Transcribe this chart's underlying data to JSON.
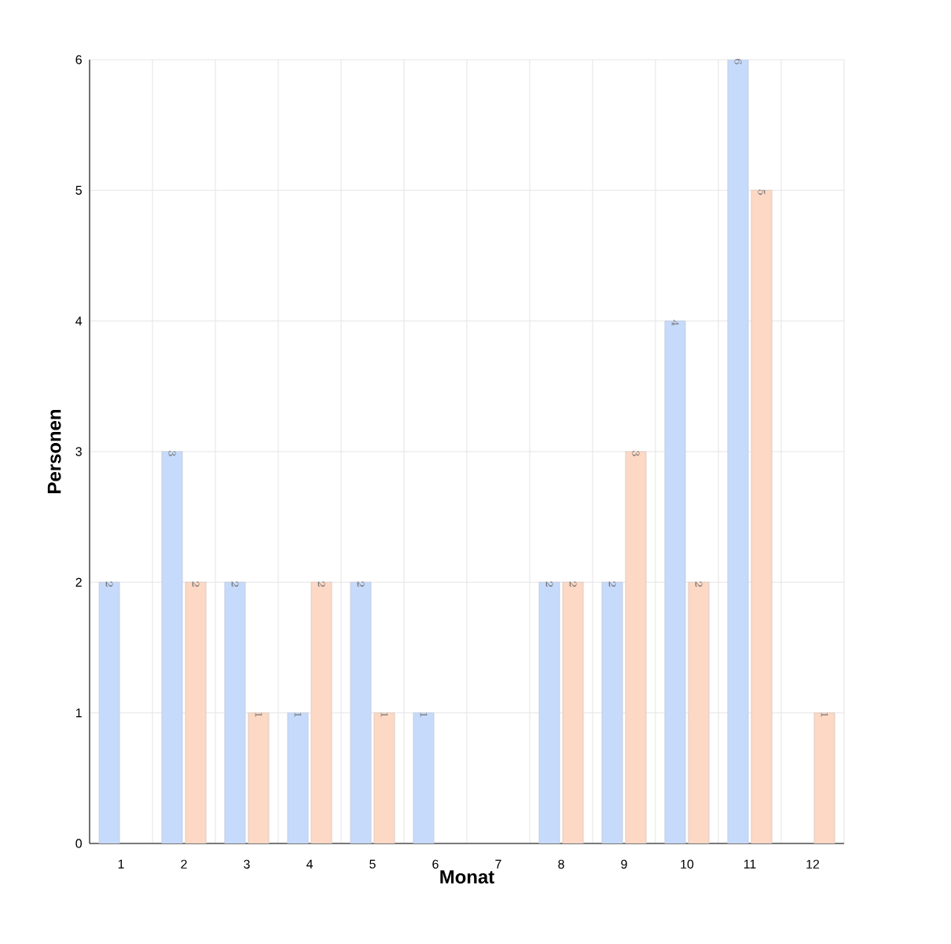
{
  "chart_data": {
    "type": "bar",
    "xlabel": "Monat",
    "ylabel": "Personen",
    "categories": [
      "1",
      "2",
      "3",
      "4",
      "5",
      "6",
      "7",
      "8",
      "9",
      "10",
      "11",
      "12"
    ],
    "series": [
      {
        "color": "#c6dafc",
        "values": [
          2,
          3,
          2,
          1,
          2,
          1,
          null,
          2,
          2,
          4,
          6,
          null
        ]
      },
      {
        "color": "#fdd8c4",
        "values": [
          null,
          2,
          1,
          2,
          1,
          null,
          null,
          2,
          3,
          2,
          5,
          1
        ]
      }
    ],
    "ylim": [
      0,
      6
    ],
    "yticks": [
      0,
      1,
      2,
      3,
      4,
      5,
      6
    ],
    "grid": true,
    "data_labels": true
  }
}
